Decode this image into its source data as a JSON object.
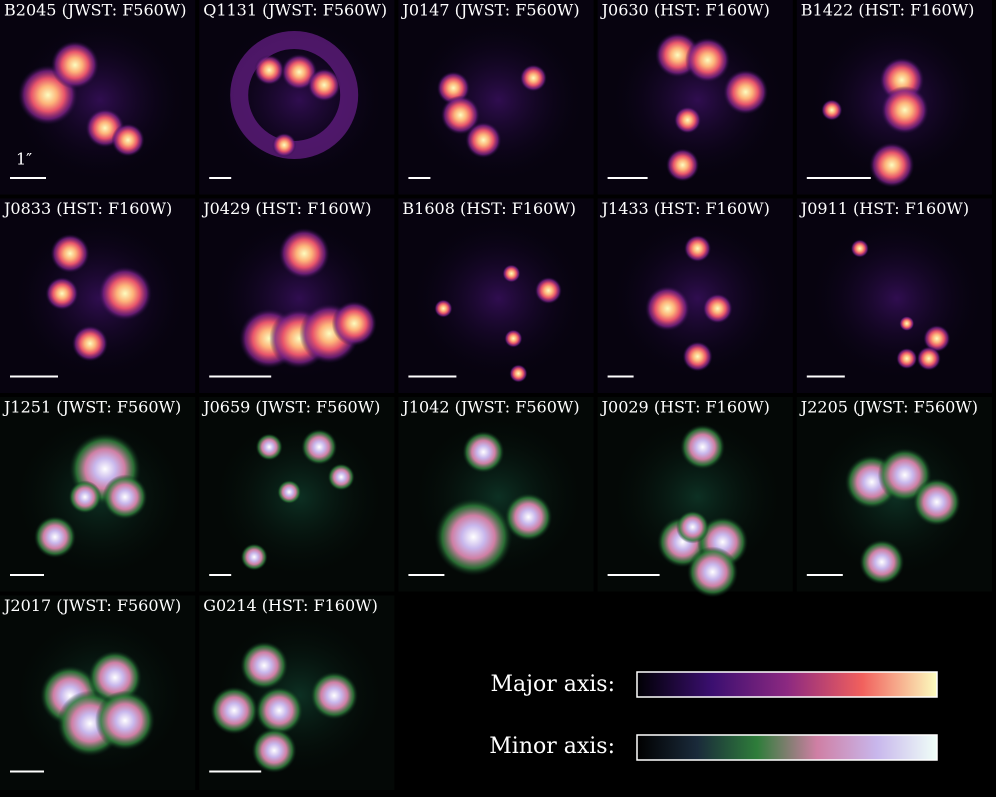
{
  "panels": [
    {
      "label": "B2045 (JWST: F560W)"
    },
    {
      "label": "Q1131 (JWST: F560W)"
    },
    {
      "label": "J0147 (JWST: F560W)"
    },
    {
      "label": "J0630 (HST: F160W)"
    },
    {
      "label": "B1422 (HST: F160W)"
    },
    {
      "label": "J0833 (HST: F160W)"
    },
    {
      "label": "J0429 (HST: F160W)"
    },
    {
      "label": "B1608 (HST: F160W)"
    },
    {
      "label": "J1433 (HST: F160W)"
    },
    {
      "label": "J0911 (HST: F160W)"
    },
    {
      "label": "J1251 (JWST: F560W)"
    },
    {
      "label": "J0659 (JWST: F560W)"
    },
    {
      "label": "J1042 (JWST: F560W)"
    },
    {
      "label": "J0029 (HST: F160W)"
    },
    {
      "label": "J2205 (JWST: F560W)"
    },
    {
      "label": "J2017 (JWST: F560W)"
    },
    {
      "label": "G0214 (HST: F160W)"
    }
  ],
  "scale_label": "1″",
  "colorbars": [
    {
      "label": "Major axis:"
    },
    {
      "label": "Minor axis:"
    }
  ]
}
